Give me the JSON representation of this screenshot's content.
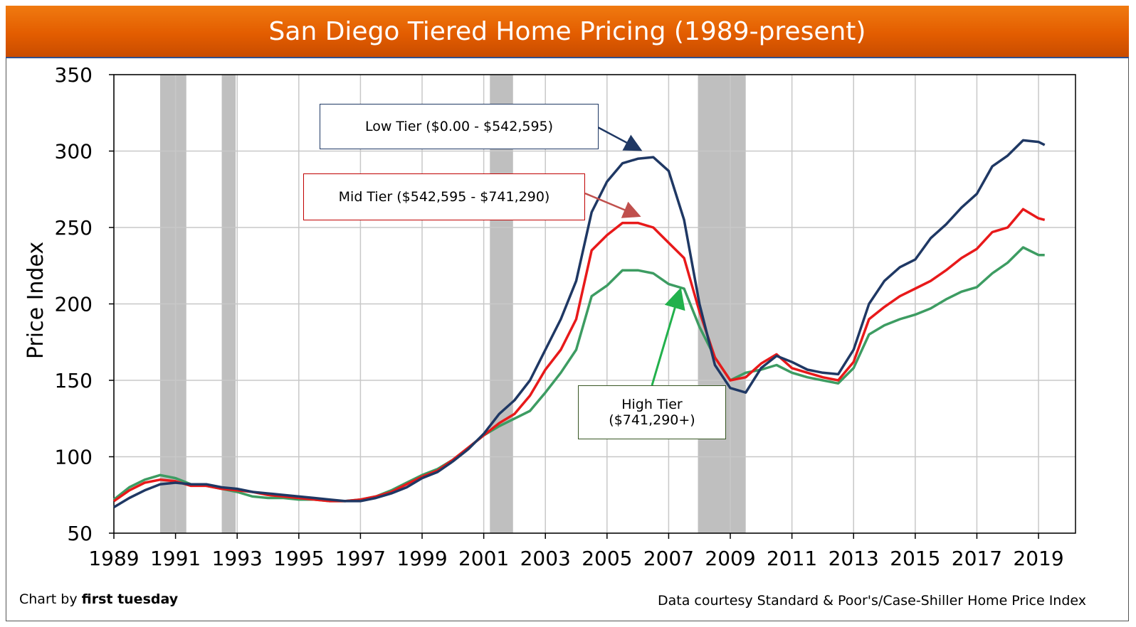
{
  "header": {
    "title": "San Diego Tiered Home Pricing (1989-present)"
  },
  "footer": {
    "credit_prefix": "Chart by ",
    "credit_brand": "first tuesday",
    "source": "Data courtesy Standard & Poor's/Case-Shiller Home Price Index"
  },
  "callouts": {
    "low": "Low Tier ($0.00 - $542,595)",
    "mid": "Mid Tier ($542,595 - $741,290)",
    "high_line1": "High Tier",
    "high_line2": "($741,290+)"
  },
  "colors": {
    "low": "#1f3864",
    "mid": "#e8191a",
    "high": "#3d9c62",
    "recession": "#bfbfbf",
    "grid": "#c8c8c8",
    "arrow_high": "#22b14c"
  },
  "chart_data": {
    "type": "line",
    "title": "San Diego Tiered Home Pricing (1989-present)",
    "ylabel": "Price Index",
    "xlabel": "",
    "xlim": [
      1989,
      2020.2
    ],
    "ylim": [
      50,
      350
    ],
    "x_ticks": [
      1989,
      1991,
      1993,
      1995,
      1997,
      1999,
      2001,
      2003,
      2005,
      2007,
      2009,
      2011,
      2013,
      2015,
      2017,
      2019
    ],
    "y_ticks": [
      50,
      100,
      150,
      200,
      250,
      300,
      350
    ],
    "grid": true,
    "recession_bands": [
      [
        1990.5,
        1991.35
      ],
      [
        1992.5,
        1992.95
      ],
      [
        2001.2,
        2001.95
      ],
      [
        2007.95,
        2009.5
      ]
    ],
    "x": [
      1989.0,
      1989.5,
      1990.0,
      1990.5,
      1991.0,
      1991.5,
      1992.0,
      1992.5,
      1993.0,
      1993.5,
      1994.0,
      1994.5,
      1995.0,
      1995.5,
      1996.0,
      1996.5,
      1997.0,
      1997.5,
      1998.0,
      1998.5,
      1999.0,
      1999.5,
      2000.0,
      2000.5,
      2001.0,
      2001.5,
      2002.0,
      2002.5,
      2003.0,
      2003.5,
      2004.0,
      2004.5,
      2005.0,
      2005.5,
      2006.0,
      2006.5,
      2007.0,
      2007.5,
      2008.0,
      2008.5,
      2009.0,
      2009.5,
      2010.0,
      2010.5,
      2011.0,
      2011.5,
      2012.0,
      2012.5,
      2013.0,
      2013.5,
      2014.0,
      2014.5,
      2015.0,
      2015.5,
      2016.0,
      2016.5,
      2017.0,
      2017.5,
      2018.0,
      2018.5,
      2019.0,
      2019.2
    ],
    "series": [
      {
        "name": "Low Tier ($0.00 - $542,595)",
        "values": [
          67,
          73,
          78,
          82,
          83,
          82,
          82,
          80,
          79,
          77,
          76,
          75,
          74,
          73,
          72,
          71,
          71,
          73,
          76,
          80,
          86,
          90,
          97,
          105,
          115,
          128,
          137,
          150,
          170,
          190,
          215,
          260,
          280,
          292,
          295,
          296,
          287,
          255,
          200,
          160,
          145,
          142,
          158,
          166,
          162,
          157,
          155,
          154,
          170,
          200,
          215,
          224,
          229,
          243,
          252,
          263,
          272,
          290,
          297,
          307,
          306,
          304
        ]
      },
      {
        "name": "Mid Tier ($542,595 - $741,290)",
        "values": [
          71,
          78,
          83,
          85,
          84,
          81,
          81,
          79,
          78,
          77,
          75,
          74,
          73,
          72,
          71,
          71,
          72,
          74,
          77,
          82,
          87,
          91,
          98,
          106,
          114,
          122,
          128,
          140,
          157,
          170,
          190,
          235,
          245,
          253,
          253,
          250,
          240,
          230,
          195,
          165,
          150,
          152,
          161,
          167,
          158,
          155,
          152,
          150,
          162,
          190,
          198,
          205,
          210,
          215,
          222,
          230,
          236,
          247,
          250,
          262,
          256,
          255
        ]
      },
      {
        "name": "High Tier ($741,290+)",
        "values": [
          72,
          80,
          85,
          88,
          86,
          82,
          81,
          79,
          77,
          74,
          73,
          73,
          72,
          72,
          71,
          71,
          72,
          74,
          78,
          83,
          88,
          92,
          98,
          106,
          114,
          120,
          125,
          130,
          142,
          155,
          170,
          205,
          212,
          222,
          222,
          220,
          213,
          210,
          185,
          165,
          150,
          155,
          157,
          160,
          155,
          152,
          150,
          148,
          158,
          180,
          186,
          190,
          193,
          197,
          203,
          208,
          211,
          220,
          227,
          237,
          232,
          232
        ]
      }
    ]
  }
}
